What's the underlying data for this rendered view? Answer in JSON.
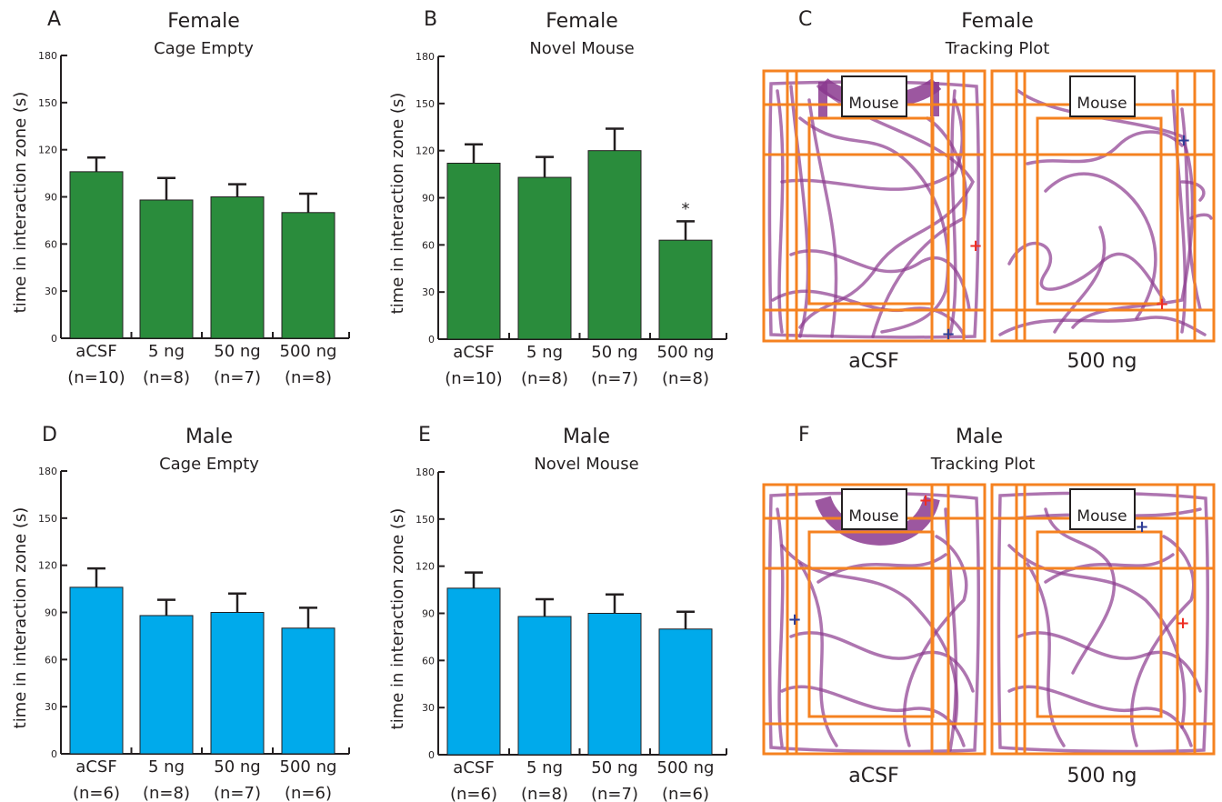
{
  "colors": {
    "female_bar": "#2a8c3c",
    "male_bar": "#00aaeb",
    "axis": "#231f20",
    "arena_orange": "#f58220",
    "track_purple": "#8b3a8f",
    "start_marker_blue": "#2e3d97",
    "end_marker_red": "#ee2e24"
  },
  "chart_data": [
    {
      "type": "bar",
      "panel": "A",
      "title": "Female",
      "subtitle": "Cage Empty",
      "ylabel": "time in interaction zone (s)",
      "ylim": [
        0,
        180
      ],
      "yticks": [
        "0",
        "30",
        "60",
        "90",
        "120",
        "150",
        "180"
      ],
      "categories": [
        "aCSF",
        "5 ng",
        "50 ng",
        "500 ng"
      ],
      "n_labels": [
        "(n=10)",
        "(n=8)",
        "(n=7)",
        "(n=8)"
      ],
      "values": [
        106,
        88,
        90,
        80
      ],
      "errors": [
        9,
        14,
        8,
        12
      ],
      "significance": [
        "",
        "",
        "",
        ""
      ],
      "color": "#2a8c3c"
    },
    {
      "type": "bar",
      "panel": "B",
      "title": "Female",
      "subtitle": "Novel Mouse",
      "ylabel": "time in interaction zone (s)",
      "ylim": [
        0,
        180
      ],
      "yticks": [
        "0",
        "30",
        "60",
        "90",
        "120",
        "150",
        "180"
      ],
      "categories": [
        "aCSF",
        "5 ng",
        "50 ng",
        "500 ng"
      ],
      "n_labels": [
        "(n=10)",
        "(n=8)",
        "(n=7)",
        "(n=8)"
      ],
      "values": [
        112,
        103,
        120,
        63
      ],
      "errors": [
        12,
        13,
        14,
        12
      ],
      "significance": [
        "",
        "",
        "",
        "*"
      ],
      "color": "#2a8c3c"
    },
    {
      "type": "bar",
      "panel": "D",
      "title": "Male",
      "subtitle": "Cage Empty",
      "ylabel": "time in interaction zone (s)",
      "ylim": [
        0,
        180
      ],
      "yticks": [
        "0",
        "30",
        "60",
        "90",
        "120",
        "150",
        "180"
      ],
      "categories": [
        "aCSF",
        "5 ng",
        "50 ng",
        "500 ng"
      ],
      "n_labels": [
        "(n=6)",
        "(n=8)",
        "(n=7)",
        "(n=6)"
      ],
      "values": [
        106,
        88,
        90,
        80
      ],
      "errors": [
        12,
        10,
        12,
        13
      ],
      "significance": [
        "",
        "",
        "",
        ""
      ],
      "color": "#00aaeb"
    },
    {
      "type": "bar",
      "panel": "E",
      "title": "Male",
      "subtitle": "Novel Mouse",
      "ylabel": "time in interaction zone (s)",
      "ylim": [
        0,
        180
      ],
      "yticks": [
        "0",
        "30",
        "60",
        "90",
        "120",
        "150",
        "180"
      ],
      "categories": [
        "aCSF",
        "5 ng",
        "50 ng",
        "500 ng"
      ],
      "n_labels": [
        "(n=6)",
        "(n=8)",
        "(n=7)",
        "(n=6)"
      ],
      "values": [
        106,
        88,
        90,
        80
      ],
      "errors": [
        10,
        11,
        12,
        11
      ],
      "significance": [
        "",
        "",
        "",
        ""
      ],
      "color": "#00aaeb"
    }
  ],
  "tracking_plots": [
    {
      "panel": "C",
      "title": "Female",
      "subtitle": "Tracking Plot",
      "mouse_box_label": "Mouse",
      "arenas": [
        {
          "label": "aCSF",
          "start_marker": "blue-plus",
          "end_marker": "red-plus"
        },
        {
          "label": "500 ng",
          "start_marker": "blue-plus",
          "end_marker": "red-plus"
        }
      ]
    },
    {
      "panel": "F",
      "title": "Male",
      "subtitle": "Tracking Plot",
      "mouse_box_label": "Mouse",
      "arenas": [
        {
          "label": "aCSF",
          "start_marker": "blue-plus",
          "end_marker": "red-plus"
        },
        {
          "label": "500 ng",
          "start_marker": "blue-plus",
          "end_marker": "red-plus"
        }
      ]
    }
  ]
}
